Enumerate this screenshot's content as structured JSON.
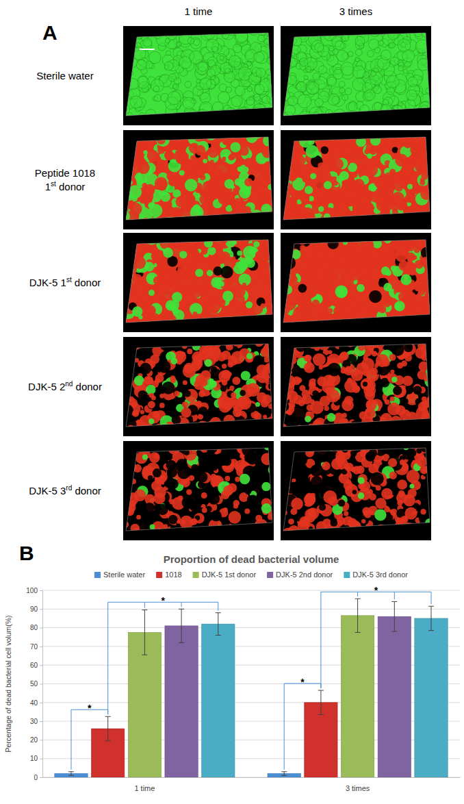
{
  "panel_a": {
    "label": "A",
    "columns": [
      "1 time",
      "3 times"
    ],
    "rows": [
      {
        "lines": [
          {
            "text": "Sterile water"
          }
        ]
      },
      {
        "lines": [
          {
            "text": "Peptide 1018"
          },
          {
            "text": "1",
            "sup": "st",
            "after": " donor"
          }
        ]
      },
      {
        "lines": [
          {
            "text": "DJK-5 1",
            "sup": "st",
            "after": " donor"
          }
        ]
      },
      {
        "lines": [
          {
            "text": "DJK-5 2",
            "sup": "nd",
            "after": " donor"
          }
        ]
      },
      {
        "lines": [
          {
            "text": "DJK-5 3",
            "sup": "rd",
            "after": " donor"
          }
        ]
      }
    ]
  },
  "chart_data": {
    "panel_label": "B",
    "type": "bar",
    "title": "Proportion of dead bacterial volume",
    "y_label": "Percentage of dead bacterial cell volum(%)",
    "categories": [
      "1 time",
      "3 times"
    ],
    "series": [
      {
        "name": "Sterile water",
        "color": "#4a8fd6",
        "values": [
          2,
          2
        ],
        "errors": [
          1,
          1
        ]
      },
      {
        "name": "1018",
        "color": "#d0312d",
        "values": [
          26,
          40
        ],
        "errors": [
          6.5,
          6.5
        ]
      },
      {
        "name": "DJK-5 1st donor",
        "color": "#9bbb59",
        "values": [
          77.5,
          86.5
        ],
        "errors": [
          12,
          9
        ]
      },
      {
        "name": "DJK-5  2nd donor",
        "color": "#8064a2",
        "values": [
          81,
          86
        ],
        "errors": [
          9,
          8
        ]
      },
      {
        "name": "DJK-5 3rd donor",
        "color": "#4bacc6",
        "values": [
          82,
          85
        ],
        "errors": [
          6,
          6.5
        ]
      }
    ],
    "ylim": [
      0,
      100
    ],
    "yticks": [
      0,
      10,
      20,
      30,
      40,
      50,
      60,
      70,
      80,
      90,
      100
    ],
    "grid": true,
    "legend": "top",
    "annotations": [
      {
        "text": "*",
        "category": 0,
        "series": [
          0,
          1
        ]
      },
      {
        "text": "*",
        "category": 0,
        "series": [
          1,
          2,
          3,
          4
        ]
      },
      {
        "text": "*",
        "category": 1,
        "series": [
          0,
          1
        ]
      },
      {
        "text": "*",
        "category": 1,
        "series": [
          1,
          2,
          3,
          4
        ]
      }
    ]
  }
}
